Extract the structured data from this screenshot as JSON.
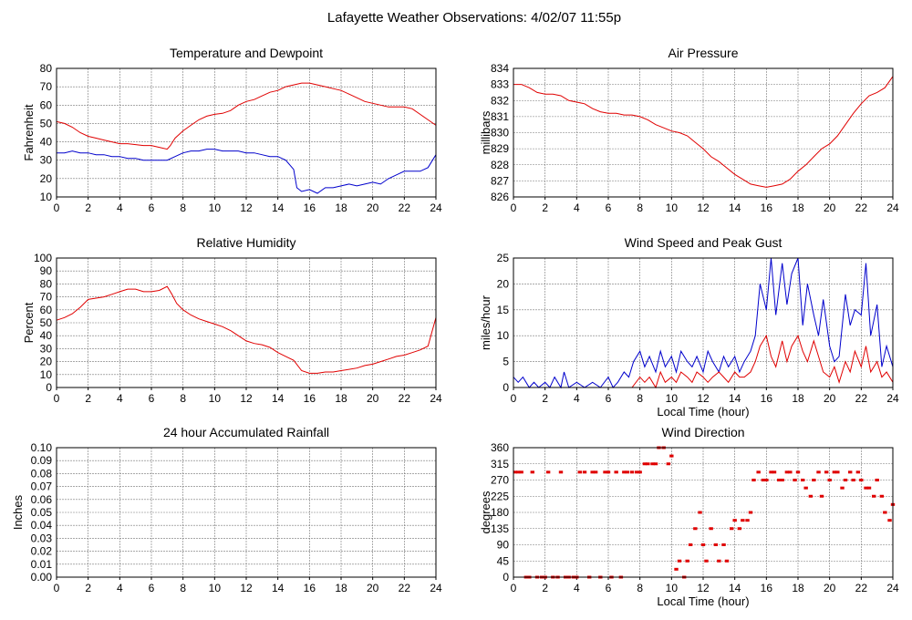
{
  "page_title": "Lafayette Weather Observations: 4/02/07 11:55p",
  "colors": {
    "red": "#e00000",
    "blue": "#0000cc",
    "grid": "#777777",
    "axis": "#000000"
  },
  "chart_data": [
    {
      "id": "temp",
      "type": "line",
      "title": "Temperature and Dewpoint",
      "xlabel": "",
      "ylabel": "Fahrenheit",
      "xlim": [
        0,
        24
      ],
      "ylim": [
        10,
        80
      ],
      "xticks": [
        0,
        2,
        4,
        6,
        8,
        10,
        12,
        14,
        16,
        18,
        20,
        22,
        24
      ],
      "yticks": [
        10,
        20,
        30,
        40,
        50,
        60,
        70,
        80
      ],
      "grid": true,
      "series": [
        {
          "color": "red",
          "x": [
            0,
            0.5,
            1,
            1.5,
            2,
            2.5,
            3,
            3.5,
            4,
            4.5,
            5,
            5.5,
            6,
            6.5,
            7,
            7.2,
            7.5,
            8,
            8.5,
            9,
            9.5,
            10,
            10.5,
            11,
            11.5,
            12,
            12.5,
            13,
            13.5,
            14,
            14.5,
            15,
            15.5,
            16,
            16.5,
            17,
            17.5,
            18,
            18.5,
            19,
            19.5,
            20,
            20.5,
            21,
            21.5,
            22,
            22.5,
            23,
            23.5,
            24
          ],
          "values": [
            51,
            50,
            48,
            45,
            43,
            42,
            41,
            40,
            39,
            39,
            38.5,
            38,
            38,
            37,
            36,
            38,
            42,
            46,
            49,
            52,
            54,
            55,
            55.5,
            57,
            60,
            62,
            63,
            65,
            67,
            68,
            70,
            71,
            72,
            72,
            71,
            70,
            69,
            68,
            66,
            64,
            62,
            61,
            60,
            59,
            59,
            59,
            58,
            55,
            52,
            49
          ]
        },
        {
          "color": "blue",
          "x": [
            0,
            0.5,
            1,
            1.5,
            2,
            2.5,
            3,
            3.5,
            4,
            4.5,
            5,
            5.5,
            6,
            6.5,
            7,
            7.5,
            8,
            8.5,
            9,
            9.5,
            10,
            10.5,
            11,
            11.5,
            12,
            12.5,
            13,
            13.5,
            14,
            14.5,
            15,
            15.2,
            15.5,
            16,
            16.5,
            17,
            17.5,
            18,
            18.5,
            19,
            19.5,
            20,
            20.5,
            21,
            21.5,
            22,
            22.5,
            23,
            23.5,
            24
          ],
          "values": [
            34,
            34,
            35,
            34,
            34,
            33,
            33,
            32,
            32,
            31,
            31,
            30,
            30,
            30,
            30,
            32,
            34,
            35,
            35,
            36,
            36,
            35,
            35,
            35,
            34,
            34,
            33,
            32,
            32,
            30,
            25,
            15,
            13,
            14,
            12,
            15,
            15,
            16,
            17,
            16,
            17,
            18,
            17,
            20,
            22,
            24,
            24,
            24,
            26,
            33
          ]
        }
      ]
    },
    {
      "id": "pressure",
      "type": "line",
      "title": "Air Pressure",
      "xlabel": "",
      "ylabel": "millibars",
      "xlim": [
        0,
        24
      ],
      "ylim": [
        826,
        834
      ],
      "xticks": [
        0,
        2,
        4,
        6,
        8,
        10,
        12,
        14,
        16,
        18,
        20,
        22,
        24
      ],
      "yticks": [
        826,
        827,
        828,
        829,
        830,
        831,
        832,
        833,
        834
      ],
      "grid": true,
      "series": [
        {
          "color": "red",
          "x": [
            0,
            0.5,
            1,
            1.5,
            2,
            2.5,
            3,
            3.5,
            4,
            4.5,
            5,
            5.5,
            6,
            6.5,
            7,
            7.5,
            8,
            8.5,
            9,
            9.5,
            10,
            10.5,
            11,
            11.5,
            12,
            12.5,
            13,
            13.5,
            14,
            14.5,
            15,
            15.5,
            16,
            16.5,
            17,
            17.5,
            18,
            18.5,
            19,
            19.5,
            20,
            20.5,
            21,
            21.5,
            22,
            22.5,
            23,
            23.5,
            24
          ],
          "values": [
            833,
            833,
            832.8,
            832.5,
            832.4,
            832.4,
            832.3,
            832,
            831.9,
            831.8,
            831.5,
            831.3,
            831.2,
            831.2,
            831.1,
            831.1,
            831,
            830.8,
            830.5,
            830.3,
            830.1,
            830,
            829.8,
            829.4,
            829,
            828.5,
            828.2,
            827.8,
            827.4,
            827.1,
            826.8,
            826.7,
            826.6,
            826.7,
            826.8,
            827.1,
            827.6,
            828,
            828.5,
            829,
            829.3,
            829.8,
            830.5,
            831.2,
            831.8,
            832.3,
            832.5,
            832.8,
            833.5
          ]
        }
      ]
    },
    {
      "id": "humidity",
      "type": "line",
      "title": "Relative Humidity",
      "xlabel": "",
      "ylabel": "Percent",
      "xlim": [
        0,
        24
      ],
      "ylim": [
        0,
        100
      ],
      "xticks": [
        0,
        2,
        4,
        6,
        8,
        10,
        12,
        14,
        16,
        18,
        20,
        22,
        24
      ],
      "yticks": [
        0,
        10,
        20,
        30,
        40,
        50,
        60,
        70,
        80,
        90,
        100
      ],
      "grid": true,
      "series": [
        {
          "color": "red",
          "x": [
            0,
            0.5,
            1,
            1.5,
            2,
            2.5,
            3,
            3.5,
            4,
            4.5,
            5,
            5.5,
            6,
            6.5,
            7,
            7.3,
            7.6,
            8,
            8.5,
            9,
            9.5,
            10,
            10.5,
            11,
            11.5,
            12,
            12.5,
            13,
            13.5,
            14,
            14.5,
            15,
            15.5,
            16,
            16.5,
            17,
            17.5,
            18,
            18.5,
            19,
            19.5,
            20,
            20.5,
            21,
            21.5,
            22,
            22.5,
            23,
            23.5,
            24
          ],
          "values": [
            52,
            54,
            57,
            62,
            68,
            69,
            70,
            72,
            74,
            76,
            76,
            74,
            74,
            75,
            78,
            72,
            65,
            60,
            56,
            53,
            51,
            49,
            47,
            44,
            40,
            36,
            34,
            33,
            31,
            27,
            24,
            21,
            13,
            11,
            11,
            12,
            12,
            13,
            14,
            15,
            17,
            18,
            20,
            22,
            24,
            25,
            27,
            29,
            32,
            54
          ]
        }
      ]
    },
    {
      "id": "wind",
      "type": "line",
      "title": "Wind Speed and Peak Gust",
      "xlabel": "Local Time (hour)",
      "ylabel": "miles/hour",
      "xlim": [
        0,
        24
      ],
      "ylim": [
        0,
        25
      ],
      "xticks": [
        0,
        2,
        4,
        6,
        8,
        10,
        12,
        14,
        16,
        18,
        20,
        22,
        24
      ],
      "yticks": [
        0,
        5,
        10,
        15,
        20,
        25
      ],
      "grid": true,
      "series": [
        {
          "color": "blue",
          "x": [
            0,
            0.3,
            0.6,
            1,
            1.3,
            1.6,
            2,
            2.3,
            2.6,
            3,
            3.2,
            3.5,
            4,
            4.5,
            5,
            5.5,
            6,
            6.3,
            6.6,
            7,
            7.3,
            7.6,
            8,
            8.3,
            8.6,
            9,
            9.3,
            9.6,
            10,
            10.3,
            10.6,
            11,
            11.3,
            11.6,
            12,
            12.3,
            12.6,
            13,
            13.3,
            13.6,
            14,
            14.3,
            14.6,
            15,
            15.3,
            15.6,
            16,
            16.3,
            16.6,
            17,
            17.3,
            17.6,
            18,
            18.3,
            18.6,
            19,
            19.3,
            19.6,
            20,
            20.3,
            20.6,
            21,
            21.3,
            21.6,
            22,
            22.3,
            22.6,
            23,
            23.3,
            23.6,
            24
          ],
          "values": [
            2,
            1,
            2,
            0,
            1,
            0,
            1,
            0,
            2,
            0,
            3,
            0,
            1,
            0,
            1,
            0,
            2,
            0,
            1,
            3,
            2,
            5,
            7,
            4,
            6,
            3,
            7,
            4,
            6,
            3,
            7,
            5,
            4,
            6,
            3,
            7,
            5,
            3,
            6,
            4,
            6,
            3,
            5,
            7,
            10,
            20,
            15,
            25,
            14,
            24,
            16,
            22,
            25,
            12,
            20,
            14,
            10,
            17,
            8,
            5,
            6,
            18,
            12,
            15,
            14,
            24,
            10,
            16,
            4,
            8,
            4
          ]
        },
        {
          "color": "red",
          "x": [
            0,
            0.5,
            1,
            1.5,
            2,
            2.5,
            3,
            3.5,
            4,
            4.5,
            5,
            5.5,
            6,
            6.5,
            7,
            7.5,
            8,
            8.3,
            8.6,
            9,
            9.3,
            9.6,
            10,
            10.3,
            10.6,
            11,
            11.3,
            11.6,
            12,
            12.3,
            12.6,
            13,
            13.3,
            13.6,
            14,
            14.3,
            14.6,
            15,
            15.3,
            15.6,
            16,
            16.3,
            16.6,
            17,
            17.3,
            17.6,
            18,
            18.3,
            18.6,
            19,
            19.3,
            19.6,
            20,
            20.3,
            20.6,
            21,
            21.3,
            21.6,
            22,
            22.3,
            22.6,
            23,
            23.3,
            23.6,
            24
          ],
          "values": [
            0,
            0,
            0,
            0,
            0,
            0,
            0,
            0,
            0,
            0,
            0,
            0,
            0,
            0,
            0,
            0,
            2,
            1,
            2,
            0,
            3,
            1,
            2,
            1,
            3,
            2,
            1,
            3,
            2,
            1,
            2,
            3,
            2,
            1,
            3,
            2,
            2,
            3,
            5,
            8,
            10,
            6,
            4,
            9,
            5,
            8,
            10,
            7,
            5,
            9,
            6,
            3,
            2,
            4,
            1,
            5,
            3,
            7,
            4,
            8,
            3,
            5,
            2,
            3,
            1
          ]
        }
      ]
    },
    {
      "id": "rain",
      "type": "line",
      "title": "24 hour Accumulated Rainfall",
      "xlabel": "",
      "ylabel": "Inches",
      "xlim": [
        0,
        24
      ],
      "ylim": [
        0,
        0.1
      ],
      "xticks": [
        0,
        2,
        4,
        6,
        8,
        10,
        12,
        14,
        16,
        18,
        20,
        22,
        24
      ],
      "yticks": [
        "0.00",
        "0.01",
        "0.02",
        "0.03",
        "0.04",
        "0.05",
        "0.06",
        "0.07",
        "0.08",
        "0.09",
        "0.10"
      ],
      "grid": true,
      "series": [
        {
          "color": "red",
          "x": [
            0,
            24
          ],
          "values": [
            0,
            0
          ]
        }
      ]
    },
    {
      "id": "direction",
      "type": "scatter",
      "title": "Wind Direction",
      "xlabel": "Local Time (hour)",
      "ylabel": "degrees",
      "xlim": [
        0,
        24
      ],
      "ylim": [
        0,
        360
      ],
      "xticks": [
        0,
        2,
        4,
        6,
        8,
        10,
        12,
        14,
        16,
        18,
        20,
        22,
        24
      ],
      "yticks": [
        0,
        45,
        90,
        135,
        180,
        225,
        270,
        315,
        360
      ],
      "grid": true,
      "series": [
        {
          "color": "red",
          "x": [
            0.1,
            0.3,
            0.5,
            0.8,
            1.0,
            1.2,
            1.5,
            1.8,
            2.0,
            2.2,
            2.5,
            2.8,
            3.0,
            3.3,
            3.5,
            3.8,
            4.0,
            4.2,
            4.5,
            4.8,
            5.0,
            5.2,
            5.5,
            5.8,
            6.0,
            6.2,
            6.5,
            6.8,
            7.0,
            7.2,
            7.5,
            7.8,
            8.0,
            8.3,
            8.5,
            8.8,
            9.0,
            9.2,
            9.5,
            9.8,
            10.0,
            10.3,
            10.5,
            10.8,
            11.0,
            11.2,
            11.5,
            11.8,
            12.0,
            12.2,
            12.5,
            12.8,
            13.0,
            13.3,
            13.5,
            13.8,
            14.0,
            14.3,
            14.5,
            14.8,
            15.0,
            15.2,
            15.5,
            15.8,
            16.0,
            16.3,
            16.5,
            16.8,
            17.0,
            17.3,
            17.5,
            17.8,
            18.0,
            18.3,
            18.5,
            18.8,
            19.0,
            19.3,
            19.5,
            19.8,
            20.0,
            20.3,
            20.5,
            20.8,
            21.0,
            21.3,
            21.5,
            21.8,
            22.0,
            22.3,
            22.5,
            22.8,
            23.0,
            23.3,
            23.5,
            23.8,
            24.0
          ],
          "values": [
            292,
            292,
            292,
            0,
            0,
            292,
            0,
            0,
            0,
            292,
            0,
            0,
            292,
            0,
            0,
            0,
            0,
            292,
            292,
            0,
            292,
            292,
            0,
            292,
            292,
            0,
            292,
            0,
            292,
            292,
            292,
            292,
            292,
            315,
            315,
            315,
            315,
            360,
            360,
            315,
            337,
            22,
            45,
            0,
            45,
            90,
            135,
            180,
            90,
            45,
            135,
            90,
            45,
            90,
            45,
            135,
            158,
            135,
            158,
            158,
            180,
            270,
            292,
            270,
            270,
            292,
            292,
            270,
            270,
            292,
            292,
            270,
            292,
            270,
            248,
            225,
            270,
            292,
            225,
            292,
            270,
            292,
            292,
            248,
            270,
            292,
            270,
            292,
            270,
            248,
            248,
            225,
            270,
            225,
            180,
            158,
            202
          ]
        }
      ]
    }
  ]
}
